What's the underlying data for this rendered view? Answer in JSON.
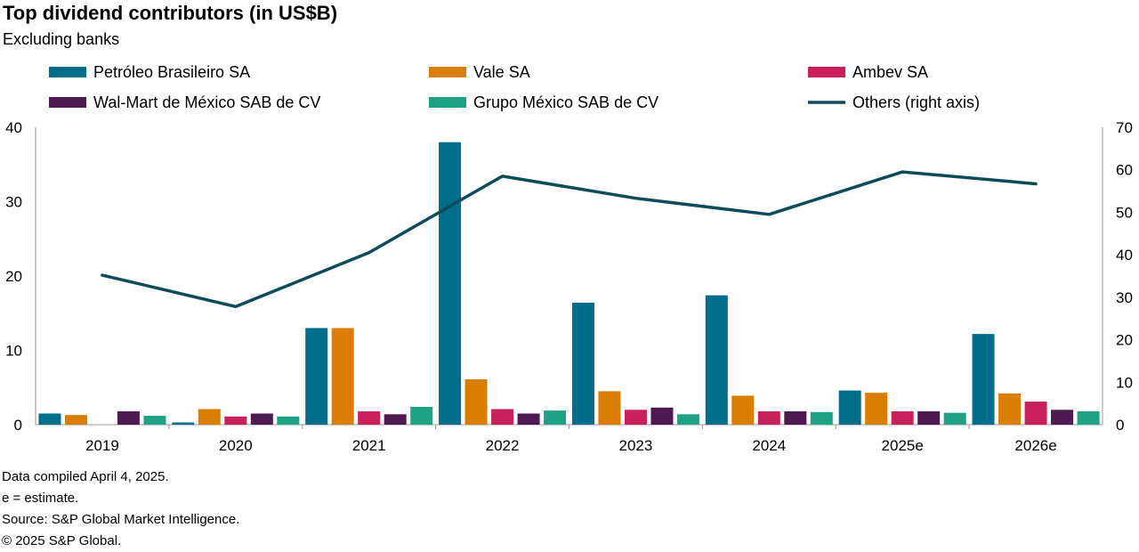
{
  "header": {
    "title": "Top dividend contributors (in US$B)",
    "subtitle": "Excluding banks"
  },
  "chart_data": {
    "type": "bar",
    "title": "Top dividend contributors (in US$B)",
    "subtitle": "Excluding banks",
    "categories": [
      "2019",
      "2020",
      "2021",
      "2022",
      "2023",
      "2024",
      "2025e",
      "2026e"
    ],
    "ylim": [
      0,
      40
    ],
    "yticks": [
      0,
      10,
      20,
      30,
      40
    ],
    "y2lim": [
      0,
      70
    ],
    "y2ticks": [
      0,
      10,
      20,
      30,
      40,
      50,
      60,
      70
    ],
    "grid": false,
    "legend_position": "top",
    "series": [
      {
        "name": "Petróleo Brasileiro SA",
        "color": "#006E8A",
        "kind": "bar",
        "axis": "left",
        "values": [
          1.5,
          0.3,
          13.0,
          38.0,
          16.4,
          17.4,
          4.6,
          12.2
        ]
      },
      {
        "name": "Vale SA",
        "color": "#D97E00",
        "kind": "bar",
        "axis": "left",
        "values": [
          1.3,
          2.1,
          13.0,
          6.1,
          4.5,
          3.9,
          4.3,
          4.2
        ]
      },
      {
        "name": "Ambev SA",
        "color": "#C8205A",
        "kind": "bar",
        "axis": "left",
        "values": [
          0.0,
          1.1,
          1.8,
          2.1,
          2.0,
          1.8,
          1.8,
          3.1
        ]
      },
      {
        "name": "Wal-Mart de México SAB de CV",
        "color": "#4E1A52",
        "kind": "bar",
        "axis": "left",
        "values": [
          1.8,
          1.5,
          1.4,
          1.5,
          2.3,
          1.8,
          1.8,
          2.0
        ]
      },
      {
        "name": "Grupo México SAB de CV",
        "color": "#1FA283",
        "kind": "bar",
        "axis": "left",
        "values": [
          1.2,
          1.1,
          2.4,
          1.9,
          1.4,
          1.7,
          1.6,
          1.8
        ]
      },
      {
        "name": "Others (right axis)",
        "color": "#0E4B5A",
        "kind": "line",
        "axis": "right",
        "values": [
          35.2,
          27.8,
          40.5,
          58.5,
          53.3,
          49.5,
          59.5,
          56.7
        ]
      }
    ]
  },
  "footer": {
    "notes": [
      "Data compiled April 4, 2025.",
      "e = estimate.",
      "Source: S&P Global Market Intelligence.",
      "© 2025 S&P Global."
    ]
  }
}
